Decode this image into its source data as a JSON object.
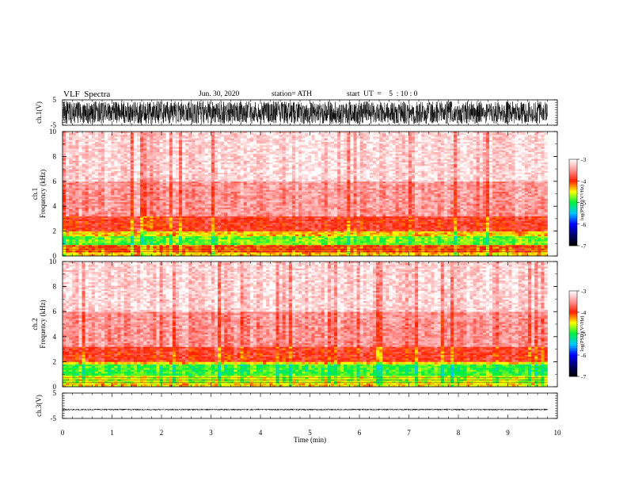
{
  "header": {
    "title": "VLF  Spectra",
    "date": "Jun. 30, 2020",
    "station": "station= ATH",
    "start": "start  UT  =    5  : 10 : 0"
  },
  "chart_data": {
    "type": "heatmap",
    "xlabel": "Time  (min)",
    "xlim": [
      0,
      10
    ],
    "xticks": [
      "0",
      "1",
      "2",
      "3",
      "4",
      "5",
      "6",
      "7",
      "8",
      "9",
      "10"
    ],
    "data_end_min": 9.8,
    "panels": [
      {
        "id": "ch1-waveform",
        "type": "line",
        "ylabel": "ch.1(V)",
        "ylim": [
          -5,
          5
        ],
        "yticks": [
          "5",
          "-5"
        ],
        "amplitude_range": [
          -4.5,
          4.5
        ]
      },
      {
        "id": "ch1-spectrogram",
        "type": "heatmap",
        "ylabel": [
          "ch.1",
          "Frequency  (kHz)"
        ],
        "ylim": [
          0,
          10
        ],
        "yticks": [
          "0",
          "2",
          "4",
          "6",
          "8",
          "10"
        ],
        "bands_khz": [
          {
            "from": 0.0,
            "to": 0.3,
            "level": -4.4
          },
          {
            "from": 0.3,
            "to": 0.9,
            "level": -4.1
          },
          {
            "from": 0.9,
            "to": 1.6,
            "level": -4.8
          },
          {
            "from": 1.6,
            "to": 2.0,
            "level": -4.4
          },
          {
            "from": 2.0,
            "to": 3.2,
            "level": -3.9
          },
          {
            "from": 3.2,
            "to": 6.0,
            "level": -3.5
          },
          {
            "from": 6.0,
            "to": 10.0,
            "level": -3.2
          }
        ],
        "colorbar": {
          "label": "log(PSD)(V²/Hz)",
          "range": [
            -7,
            -3
          ],
          "ticks": [
            "-3",
            "-4",
            "-5",
            "-6",
            "-7"
          ]
        }
      },
      {
        "id": "ch2-spectrogram",
        "type": "heatmap",
        "ylabel": [
          "ch.2",
          "Frequency  (kHz)"
        ],
        "ylim": [
          0,
          10
        ],
        "yticks": [
          "0",
          "2",
          "4",
          "6",
          "8",
          "10"
        ],
        "bands_khz": [
          {
            "from": 0.0,
            "to": 0.3,
            "level": -4.4
          },
          {
            "from": 0.3,
            "to": 0.9,
            "level": -4.6
          },
          {
            "from": 0.9,
            "to": 1.8,
            "level": -4.9
          },
          {
            "from": 1.8,
            "to": 2.0,
            "level": -4.4
          },
          {
            "from": 2.0,
            "to": 3.2,
            "level": -3.9
          },
          {
            "from": 3.2,
            "to": 6.0,
            "level": -3.5
          },
          {
            "from": 6.0,
            "to": 10.0,
            "level": -3.2
          }
        ],
        "colorbar": {
          "label": "log(PSD)(V²/Hz)",
          "range": [
            -7,
            -3
          ],
          "ticks": [
            "-3",
            "-4",
            "-5",
            "-6",
            "-7"
          ]
        }
      },
      {
        "id": "ch3-waveform",
        "type": "line",
        "ylabel": "ch.3(V)",
        "ylim": [
          -5,
          5
        ],
        "yticks": [
          "5",
          "-5"
        ],
        "amplitude_range": [
          -1.8,
          -1.2
        ]
      }
    ]
  }
}
